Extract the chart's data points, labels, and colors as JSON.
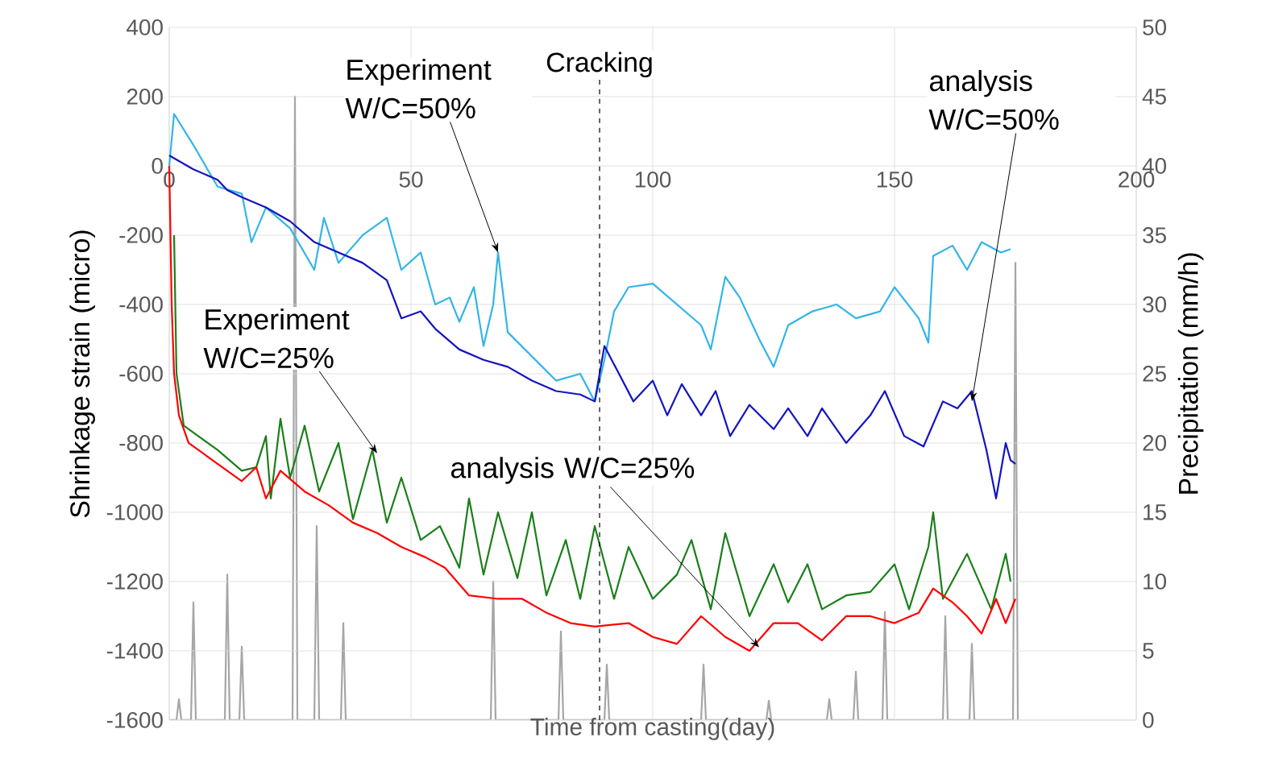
{
  "chart_data": {
    "type": "line",
    "xlabel": "Time from casting(day)",
    "ylabel": "Shrinkage strain (micro)",
    "y2label": "Precipitation (mm/h)",
    "xlim": [
      0,
      200
    ],
    "xticks": [
      0,
      50,
      100,
      150,
      200
    ],
    "ylim": [
      -1600,
      400
    ],
    "yticks": [
      -1600,
      -1400,
      -1200,
      -1000,
      -800,
      -600,
      -400,
      -200,
      0,
      200,
      400
    ],
    "y2lim": [
      0,
      50
    ],
    "y2ticks": [
      0,
      5,
      10,
      15,
      20,
      25,
      30,
      35,
      40,
      45,
      50
    ],
    "grid": true,
    "ref_lines": [
      {
        "axis": "x",
        "value": 89,
        "label": "Cracking",
        "line_style": "dashed",
        "color": "#000000"
      }
    ],
    "annotations": [
      {
        "text": "Experiment W/C=50%",
        "x": 68,
        "y": -250
      },
      {
        "text": "analysis W/C=50%",
        "x": 166,
        "y": -680
      },
      {
        "text": "Experiment W/C=25%",
        "x": 43,
        "y": -830
      },
      {
        "text": "analysis W/C=25%",
        "x": 122,
        "y": -1390
      }
    ],
    "series": [
      {
        "color": "#a6a6a6",
        "axis": "y2",
        "x": [
          0,
          1.5,
          2,
          2.5,
          4.5,
          5,
          5.5,
          11.5,
          12,
          12.5,
          14.5,
          15,
          15.5,
          25.5,
          26,
          26.5,
          30,
          30.5,
          31,
          35.5,
          36,
          36.5,
          66.5,
          67,
          67.5,
          80.5,
          81,
          81.5,
          90,
          90.5,
          91,
          110,
          110.5,
          111,
          123.5,
          124,
          124.5,
          136,
          136.5,
          137,
          141.5,
          142,
          142.5,
          147.5,
          148,
          148.5,
          160,
          160.5,
          161,
          165.5,
          166,
          166.5,
          174.5,
          175,
          175.5
        ],
        "values": [
          0,
          0,
          1.5,
          0,
          0,
          8.5,
          0,
          0,
          10.5,
          0,
          0,
          5.3,
          0,
          0,
          45,
          0,
          0,
          14,
          0,
          0,
          7,
          0,
          0,
          10,
          0,
          0,
          6.4,
          0,
          0,
          4,
          0,
          0,
          4,
          0,
          0,
          1.4,
          0,
          0,
          1.5,
          0,
          0,
          3.5,
          0,
          0,
          7.8,
          0,
          0,
          7.5,
          0,
          0,
          5.5,
          0,
          0,
          33,
          0
        ]
      },
      {
        "color": "#33b5e8",
        "x": [
          0,
          1,
          5,
          10,
          15,
          17,
          20,
          25,
          30,
          32,
          35,
          40,
          45,
          48,
          52,
          55,
          58,
          60,
          63,
          65,
          67,
          68,
          70,
          75,
          80,
          85,
          88,
          90,
          92,
          95,
          100,
          105,
          110,
          112,
          115,
          118,
          122,
          125,
          128,
          133,
          138,
          142,
          147,
          150,
          155,
          157,
          158,
          162,
          165,
          168,
          172,
          174
        ],
        "values": [
          0,
          150,
          60,
          -60,
          -80,
          -220,
          -120,
          -180,
          -300,
          -150,
          -280,
          -200,
          -150,
          -300,
          -250,
          -400,
          -380,
          -450,
          -350,
          -520,
          -400,
          -250,
          -480,
          -550,
          -620,
          -600,
          -680,
          -560,
          -420,
          -350,
          -340,
          -400,
          -460,
          -530,
          -320,
          -380,
          -500,
          -580,
          -460,
          -420,
          -400,
          -440,
          -420,
          -350,
          -440,
          -510,
          -260,
          -230,
          -300,
          -220,
          -250,
          -240
        ]
      },
      {
        "color": "#1414c0",
        "x": [
          0,
          5,
          10,
          12,
          15,
          20,
          25,
          30,
          35,
          40,
          45,
          48,
          52,
          55,
          60,
          65,
          70,
          75,
          80,
          85,
          88,
          90,
          93,
          96,
          100,
          103,
          106,
          110,
          113,
          116,
          120,
          125,
          128,
          132,
          135,
          140,
          145,
          148,
          152,
          156,
          160,
          163,
          166,
          169,
          171,
          173,
          174,
          175
        ],
        "values": [
          30,
          -10,
          -40,
          -70,
          -90,
          -120,
          -160,
          -220,
          -250,
          -280,
          -330,
          -440,
          -420,
          -470,
          -530,
          -560,
          -580,
          -620,
          -650,
          -660,
          -680,
          -520,
          -600,
          -680,
          -620,
          -720,
          -630,
          -720,
          -650,
          -780,
          -690,
          -760,
          -700,
          -780,
          -700,
          -800,
          -720,
          -650,
          -780,
          -810,
          -680,
          -700,
          -650,
          -820,
          -960,
          -800,
          -850,
          -860
        ]
      },
      {
        "color": "#1a7f1a",
        "x": [
          1,
          1.5,
          3,
          10,
          15,
          18,
          20,
          21,
          23,
          25,
          28,
          31,
          35,
          38,
          42,
          45,
          48,
          52,
          56,
          60,
          62,
          65,
          68,
          72,
          75,
          78,
          82,
          85,
          88,
          92,
          95,
          100,
          105,
          108,
          112,
          115,
          120,
          125,
          128,
          132,
          135,
          140,
          145,
          150,
          153,
          157,
          158,
          160,
          165,
          170,
          173,
          174
        ],
        "values": [
          -200,
          -600,
          -750,
          -820,
          -880,
          -870,
          -780,
          -960,
          -730,
          -900,
          -750,
          -940,
          -800,
          -1020,
          -820,
          -1030,
          -900,
          -1080,
          -1040,
          -1160,
          -960,
          -1180,
          -1000,
          -1190,
          -1000,
          -1240,
          -1080,
          -1250,
          -1040,
          -1250,
          -1100,
          -1250,
          -1180,
          -1080,
          -1280,
          -1060,
          -1300,
          -1150,
          -1260,
          -1150,
          -1280,
          -1240,
          -1230,
          -1150,
          -1280,
          -1100,
          -1000,
          -1250,
          -1120,
          -1280,
          -1120,
          -1200
        ]
      },
      {
        "color": "#ff0000",
        "x": [
          0,
          0.5,
          1,
          2,
          4,
          10,
          15,
          18,
          20,
          23,
          28,
          33,
          38,
          43,
          48,
          53,
          57,
          62,
          68,
          73,
          78,
          83,
          88,
          95,
          100,
          105,
          110,
          115,
          120,
          125,
          130,
          135,
          140,
          145,
          150,
          155,
          158,
          162,
          165,
          168,
          171,
          173,
          175
        ],
        "values": [
          0,
          -400,
          -600,
          -720,
          -800,
          -860,
          -910,
          -870,
          -960,
          -880,
          -940,
          -980,
          -1030,
          -1060,
          -1100,
          -1130,
          -1160,
          -1240,
          -1250,
          -1250,
          -1290,
          -1320,
          -1330,
          -1320,
          -1360,
          -1380,
          -1300,
          -1360,
          -1400,
          -1320,
          -1320,
          -1370,
          -1300,
          -1300,
          -1320,
          -1290,
          -1220,
          -1260,
          -1300,
          -1350,
          -1250,
          -1320,
          -1250
        ]
      }
    ]
  }
}
